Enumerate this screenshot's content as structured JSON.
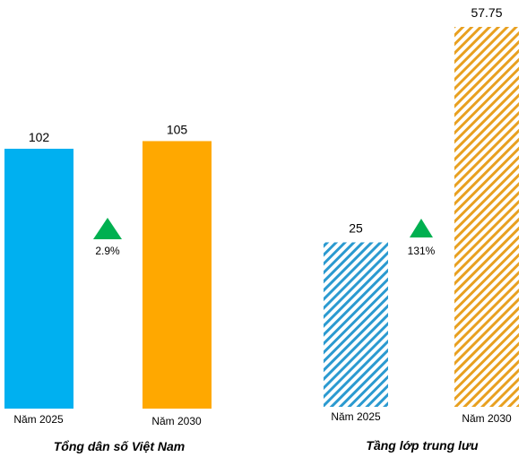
{
  "chart_data": [
    {
      "type": "bar",
      "title": "Tổng dân số Việt Nam",
      "categories": [
        "Năm 2025",
        "Năm 2030"
      ],
      "values": [
        102,
        105
      ],
      "value_labels": [
        "102",
        "105"
      ],
      "colors": [
        "#00b0f0",
        "#ffa800"
      ],
      "fill": "solid",
      "change_label": "2.9%",
      "change_color": "#00b050"
    },
    {
      "type": "bar",
      "title": "Tầng lớp trung lưu",
      "categories": [
        "Năm 2025",
        "Năm 2030"
      ],
      "values": [
        25,
        57.75
      ],
      "value_labels": [
        "25",
        "57.75"
      ],
      "colors": [
        "#2b9ad0",
        "#e8a020"
      ],
      "fill": "hatched",
      "change_label": "131%",
      "change_color": "#00b050"
    }
  ]
}
